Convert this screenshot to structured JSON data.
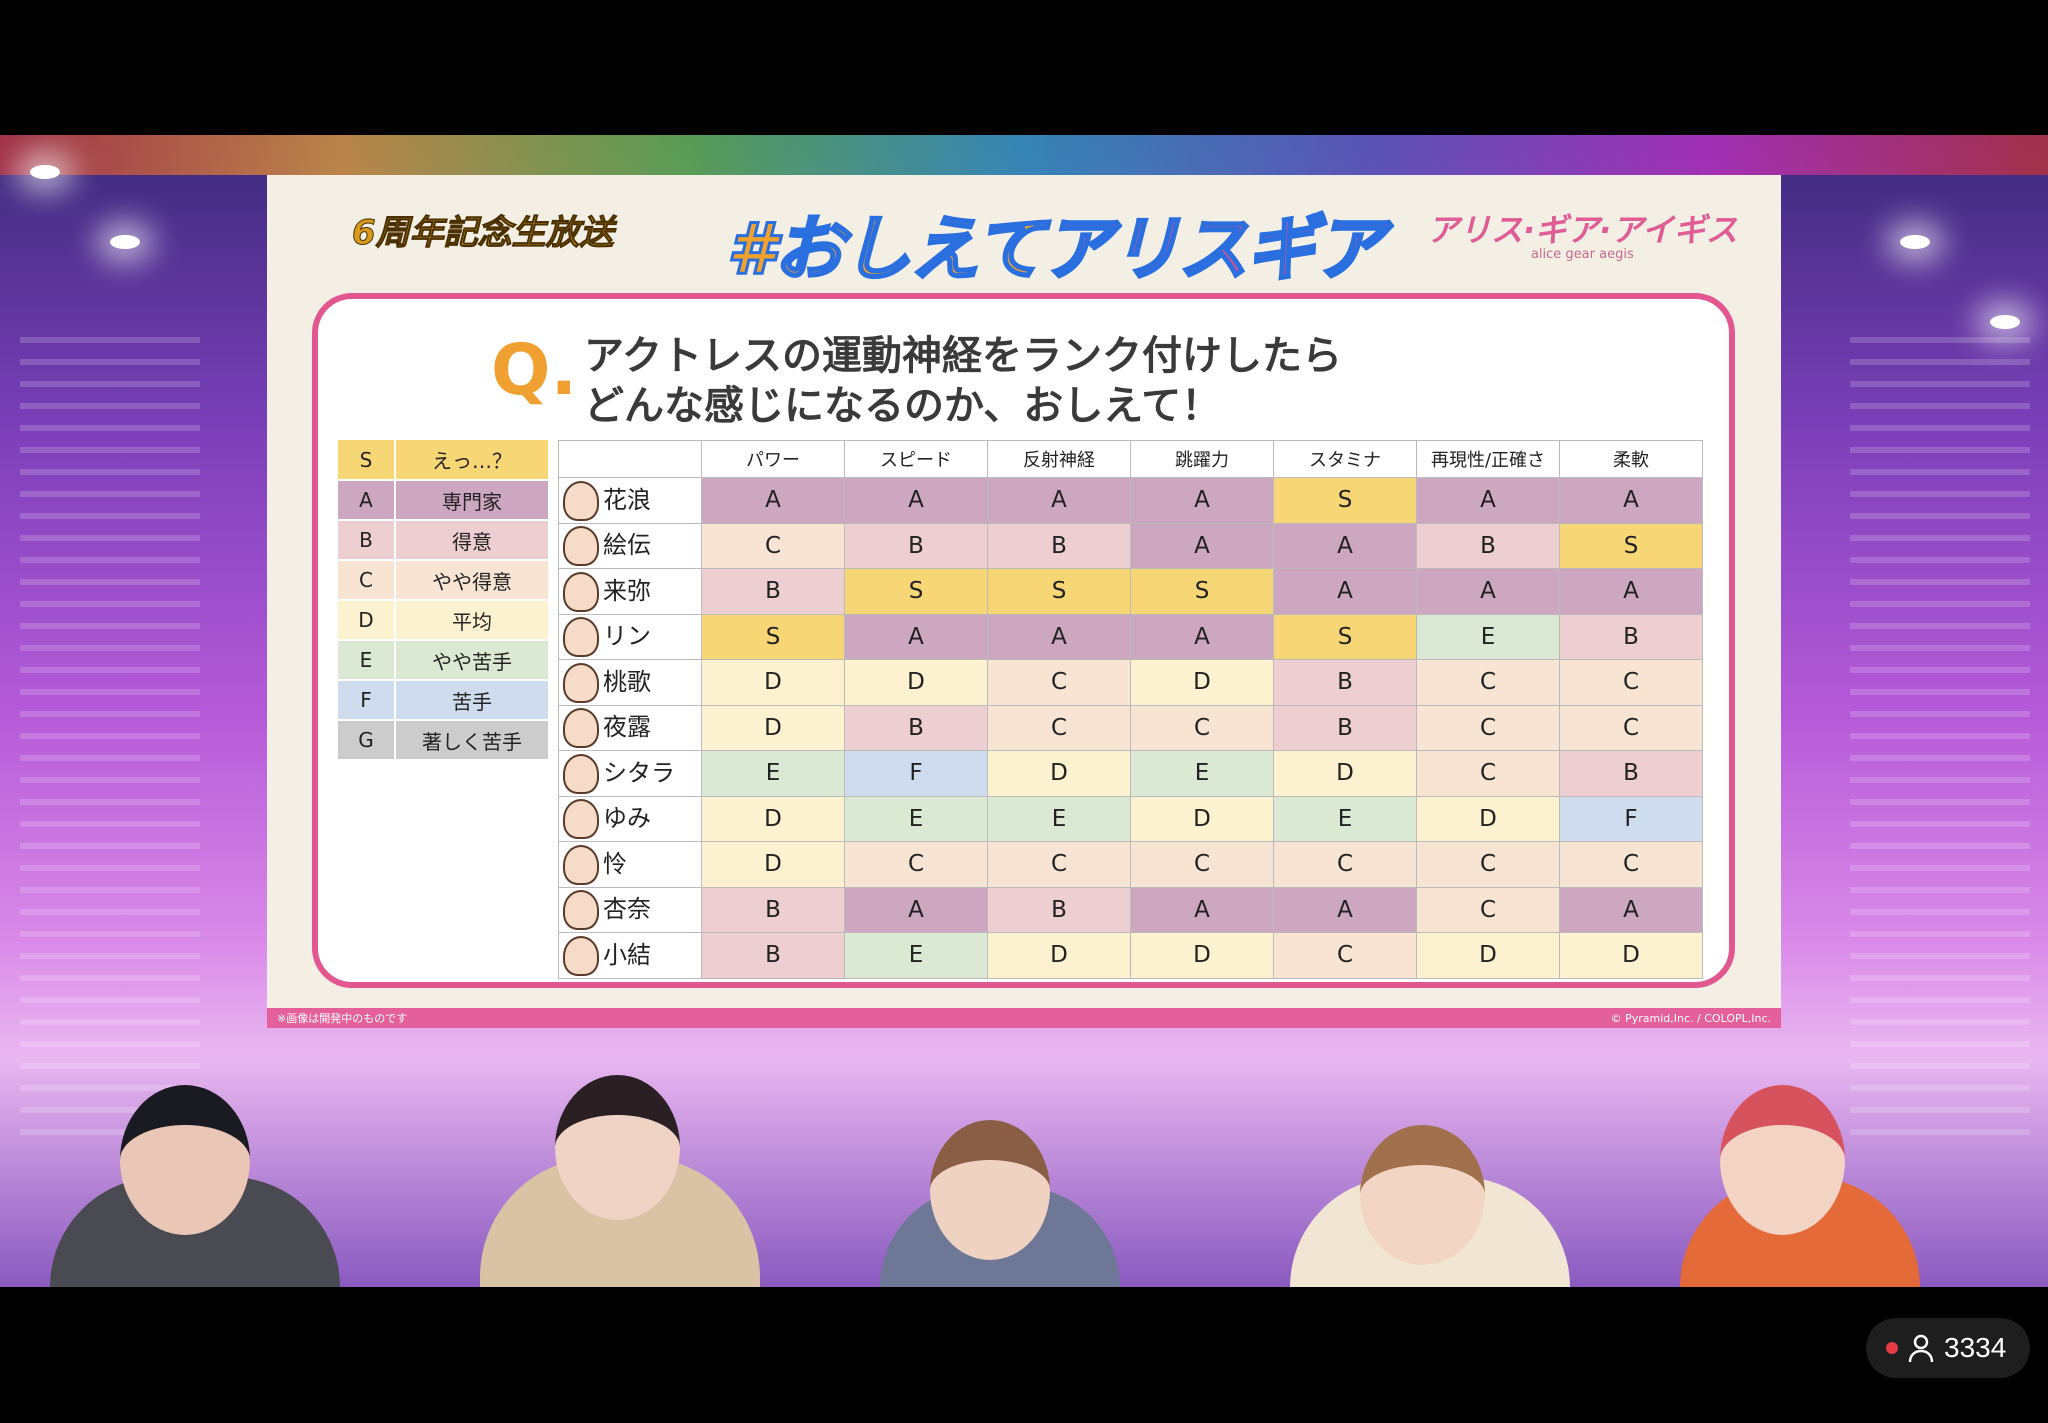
{
  "slide": {
    "logo_left": "6周年記念生放送",
    "title_a": "#おしえて",
    "title_b": "アリスギア",
    "logo_right_jp": "アリス·ギア·アイギス",
    "logo_right_en": "alice gear aegis",
    "question_mark": "Q.",
    "question_line1": "アクトレスの運動神経をランク付けしたら",
    "question_line2": "どんな感じになるのか、おしえて！",
    "footer_left": "※画像は開発中のものです",
    "footer_right": "© Pyramid,Inc. / COLOPL,Inc."
  },
  "rank_colors": {
    "S": "#f7d675",
    "A": "#cda6c0",
    "B": "#edcfd2",
    "C": "#f8e4d2",
    "D": "#fdf2cf",
    "E": "#dbe8d4",
    "F": "#cfdcee",
    "G": "#cccccc"
  },
  "legend": [
    {
      "rank": "S",
      "label": "えっ…？"
    },
    {
      "rank": "A",
      "label": "専門家"
    },
    {
      "rank": "B",
      "label": "得意"
    },
    {
      "rank": "C",
      "label": "やや得意"
    },
    {
      "rank": "D",
      "label": "平均"
    },
    {
      "rank": "E",
      "label": "やや苦手"
    },
    {
      "rank": "F",
      "label": "苦手"
    },
    {
      "rank": "G",
      "label": "著しく苦手"
    }
  ],
  "table": {
    "columns": [
      "パワー",
      "スピード",
      "反射神経",
      "跳躍力",
      "スタミナ",
      "再現性/正確さ",
      "柔軟"
    ],
    "rows": [
      {
        "name": "花浪",
        "ranks": [
          "A",
          "A",
          "A",
          "A",
          "S",
          "A",
          "A"
        ]
      },
      {
        "name": "絵伝",
        "ranks": [
          "C",
          "B",
          "B",
          "A",
          "A",
          "B",
          "S"
        ]
      },
      {
        "name": "来弥",
        "ranks": [
          "B",
          "S",
          "S",
          "S",
          "A",
          "A",
          "A"
        ]
      },
      {
        "name": "リン",
        "ranks": [
          "S",
          "A",
          "A",
          "A",
          "S",
          "E",
          "B"
        ]
      },
      {
        "name": "桃歌",
        "ranks": [
          "D",
          "D",
          "C",
          "D",
          "B",
          "C",
          "C"
        ]
      },
      {
        "name": "夜露",
        "ranks": [
          "D",
          "B",
          "C",
          "C",
          "B",
          "C",
          "C"
        ]
      },
      {
        "name": "シタラ",
        "ranks": [
          "E",
          "F",
          "D",
          "E",
          "D",
          "C",
          "B"
        ]
      },
      {
        "name": "ゆみ",
        "ranks": [
          "D",
          "E",
          "E",
          "D",
          "E",
          "D",
          "F"
        ]
      },
      {
        "name": "怜",
        "ranks": [
          "D",
          "C",
          "C",
          "C",
          "C",
          "C",
          "C"
        ]
      },
      {
        "name": "杏奈",
        "ranks": [
          "B",
          "A",
          "B",
          "A",
          "A",
          "C",
          "A"
        ]
      },
      {
        "name": "小結",
        "ranks": [
          "B",
          "E",
          "D",
          "D",
          "C",
          "D",
          "D"
        ]
      }
    ]
  },
  "viewer": {
    "count": "3334",
    "icon": "person-icon"
  }
}
